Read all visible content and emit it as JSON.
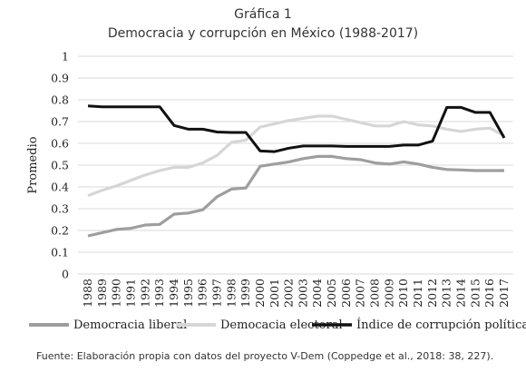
{
  "chart_data": {
    "type": "line",
    "title": "Gráfica 1",
    "subtitle": "Democracia y corrupción en México (1988-2017)",
    "ylabel": "Promedio",
    "xlabel": "",
    "ylim": [
      0,
      1
    ],
    "yticks": [
      0,
      0.1,
      0.2,
      0.3,
      0.4,
      0.5,
      0.6,
      0.7,
      0.8,
      0.9,
      1
    ],
    "ytick_labels": [
      "0",
      "0.1",
      "0.2",
      "0.3",
      "0.4",
      "0.5",
      "0.6",
      "0.7",
      "0.8",
      "0.9",
      "1"
    ],
    "x": [
      "1988",
      "1989",
      "1990",
      "1991",
      "1992",
      "1993",
      "1994",
      "1995",
      "1996",
      "1997",
      "1998",
      "1999",
      "2000",
      "2001",
      "2002",
      "2003",
      "2004",
      "2005",
      "2006",
      "2007",
      "2008",
      "2009",
      "2010",
      "2011",
      "2012",
      "2013",
      "2014",
      "2015",
      "2016",
      "2017"
    ],
    "grid": "horizontal",
    "legend": "bottom",
    "series": [
      {
        "name": "Democracia liberal",
        "color": "#9e9e9e",
        "values": [
          0.175,
          0.19,
          0.205,
          0.21,
          0.225,
          0.228,
          0.275,
          0.28,
          0.295,
          0.355,
          0.39,
          0.395,
          0.495,
          0.505,
          0.515,
          0.53,
          0.54,
          0.54,
          0.53,
          0.525,
          0.51,
          0.505,
          0.515,
          0.505,
          0.49,
          0.48,
          0.478,
          0.475,
          0.475,
          0.475
        ]
      },
      {
        "name": "Democacia electoral",
        "color": "#d6d6d6",
        "values": [
          0.36,
          0.385,
          0.405,
          0.43,
          0.455,
          0.475,
          0.49,
          0.49,
          0.51,
          0.545,
          0.605,
          0.615,
          0.675,
          0.69,
          0.705,
          0.715,
          0.725,
          0.725,
          0.71,
          0.695,
          0.68,
          0.68,
          0.7,
          0.685,
          0.68,
          0.665,
          0.655,
          0.665,
          0.67,
          0.635
        ]
      },
      {
        "name": "Índice de corrupción política",
        "color": "#111111",
        "values": [
          0.772,
          0.768,
          0.768,
          0.768,
          0.768,
          0.768,
          0.682,
          0.665,
          0.665,
          0.652,
          0.65,
          0.65,
          0.565,
          0.562,
          0.578,
          0.588,
          0.588,
          0.588,
          0.586,
          0.586,
          0.586,
          0.586,
          0.592,
          0.592,
          0.61,
          0.765,
          0.765,
          0.742,
          0.742,
          0.625
        ]
      }
    ],
    "source": "Fuente: Elaboración propia con datos del proyecto V-Dem (Coppedge et al., 2018: 38, 227)."
  }
}
